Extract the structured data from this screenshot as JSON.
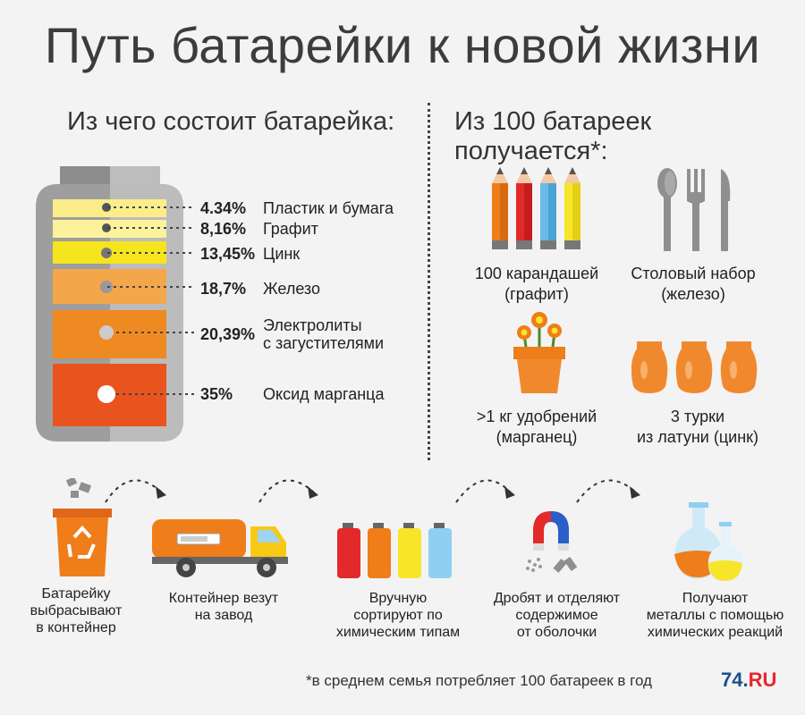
{
  "title": "Путь батарейки к новой жизни",
  "left_heading": "Из чего состоит батарейка:",
  "right_heading": "Из 100 батареек получается*:",
  "composition": [
    {
      "percent": "4.34%",
      "label": "Пластик и бумага",
      "color": "#fbee8a"
    },
    {
      "percent": "8,16%",
      "label": "Графит",
      "color": "#fcf29b"
    },
    {
      "percent": "13,45%",
      "label": "Цинк",
      "color": "#f5e51e"
    },
    {
      "percent": "18,7%",
      "label": "Железо",
      "color": "#f4a64a"
    },
    {
      "percent": "20,39%",
      "label": "Электролиты",
      "label2": "с загустителями",
      "color": "#ef8a23"
    },
    {
      "percent": "35%",
      "label": "Оксид марганца",
      "color": "#e9541e"
    }
  ],
  "products": [
    {
      "line1": "100 карандашей",
      "line2": "(графит)",
      "icon": "pencils-icon"
    },
    {
      "line1": "Столовый набор",
      "line2": "(железо)",
      "icon": "cutlery-icon"
    },
    {
      "line1": ">1 кг удобрений",
      "line2": "(марганец)",
      "icon": "flower-pot-icon"
    },
    {
      "line1": "3 турки",
      "line2": "из латуни (цинк)",
      "icon": "turkish-coffee-pots-icon"
    }
  ],
  "steps": [
    {
      "line1": "Батарейку",
      "line2": "выбрасывают",
      "line3": "в контейнер",
      "icon": "recycle-bin-icon"
    },
    {
      "line1": "Контейнер везут",
      "line2": "на завод",
      "line3": "",
      "icon": "truck-icon"
    },
    {
      "line1": "Вручную",
      "line2": "сортируют по",
      "line3": "химическим типам",
      "icon": "batteries-icon"
    },
    {
      "line1": "Дробят и отделяют",
      "line2": "содержимое",
      "line3": "от оболочки",
      "icon": "magnet-icon"
    },
    {
      "line1": "Получают",
      "line2": "металлы с помощью",
      "line3": "химических реакций",
      "icon": "flasks-icon"
    }
  ],
  "footnote": "*в среднем семья потребляет 100 батареек в год",
  "brand": {
    "main": "74.",
    "accent": "RU"
  },
  "colors": {
    "battery_shell": "#a7a7a7",
    "battery_shell_dark": "#8d8d8d",
    "accent_orange": "#ef7d1a",
    "brand_blue": "#1b4f8f",
    "brand_red": "#e8262d"
  }
}
